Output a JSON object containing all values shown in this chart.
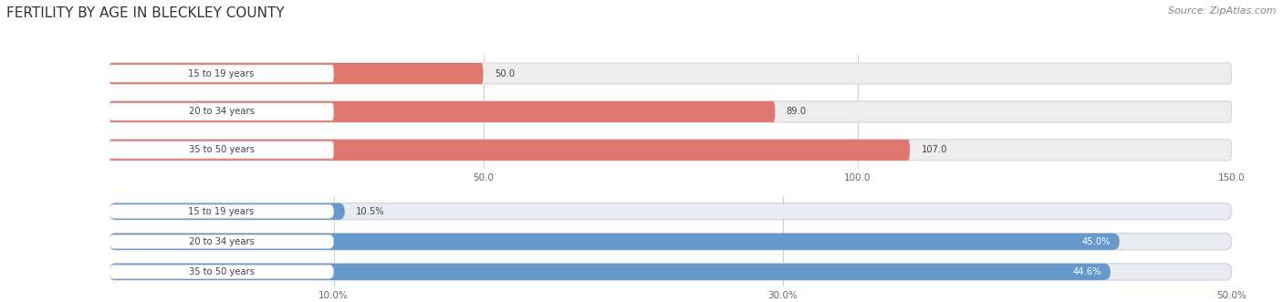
{
  "title": "FERTILITY BY AGE IN BLECKLEY COUNTY",
  "source": "Source: ZipAtlas.com",
  "top_chart": {
    "categories": [
      "15 to 19 years",
      "20 to 34 years",
      "35 to 50 years"
    ],
    "values": [
      50.0,
      89.0,
      107.0
    ],
    "xlim": [
      0,
      150
    ],
    "xticks": [
      50.0,
      100.0,
      150.0
    ],
    "xtick_labels": [
      "50.0",
      "100.0",
      "150.0"
    ],
    "bar_color": "#E07870",
    "bar_bg_color": "#EEECEC",
    "bar_edge_color": "#D8D4D4",
    "value_labels": [
      "50.0",
      "89.0",
      "107.0"
    ],
    "value_inside": [
      false,
      false,
      false
    ]
  },
  "bottom_chart": {
    "categories": [
      "15 to 19 years",
      "20 to 34 years",
      "35 to 50 years"
    ],
    "values": [
      10.5,
      45.0,
      44.6
    ],
    "xlim": [
      0,
      50
    ],
    "xticks": [
      10.0,
      30.0,
      50.0
    ],
    "xtick_labels": [
      "10.0%",
      "30.0%",
      "50.0%"
    ],
    "bar_color": "#6699CC",
    "bar_bg_color": "#E8ECF2",
    "bar_edge_color": "#CCD0D8",
    "value_labels": [
      "10.5%",
      "45.0%",
      "44.6%"
    ],
    "value_inside": [
      false,
      true,
      true
    ]
  },
  "label_text_color": "#444444",
  "title_fontsize": 11,
  "source_fontsize": 8,
  "bar_height": 0.55,
  "bg_color": "#FFFFFF",
  "grid_color": "#CCCCCC"
}
